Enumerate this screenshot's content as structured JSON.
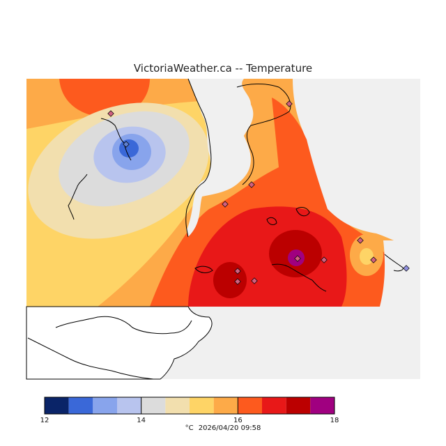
{
  "title": "VictoriaWeather.ca -- Temperature",
  "map": {
    "background_color": "#f0f0f0",
    "land_outline_color": "#000000",
    "station_marker": "diamond",
    "station_count": 13
  },
  "colorbar": {
    "unit": "°C",
    "timestamp": "2026/04/20 09:58",
    "min": 12,
    "max": 18,
    "tick_labels": [
      "12",
      "14",
      "16",
      "18"
    ],
    "bins": [
      {
        "from": 12.0,
        "to": 12.5,
        "color": "#0a2468"
      },
      {
        "from": 12.5,
        "to": 13.0,
        "color": "#3a68d8"
      },
      {
        "from": 13.0,
        "to": 13.5,
        "color": "#88a4ec"
      },
      {
        "from": 13.5,
        "to": 14.0,
        "color": "#b8c4ee"
      },
      {
        "from": 14.0,
        "to": 14.5,
        "color": "#dcdcdc"
      },
      {
        "from": 14.5,
        "to": 15.0,
        "color": "#f2dfae"
      },
      {
        "from": 15.0,
        "to": 15.5,
        "color": "#fed466"
      },
      {
        "from": 15.5,
        "to": 16.0,
        "color": "#fdaa48"
      },
      {
        "from": 16.0,
        "to": 16.5,
        "color": "#fd5a1e"
      },
      {
        "from": 16.5,
        "to": 17.0,
        "color": "#e81818"
      },
      {
        "from": 17.0,
        "to": 17.5,
        "color": "#bb0000"
      },
      {
        "from": 17.5,
        "to": 18.0,
        "color": "#a00080"
      }
    ]
  }
}
